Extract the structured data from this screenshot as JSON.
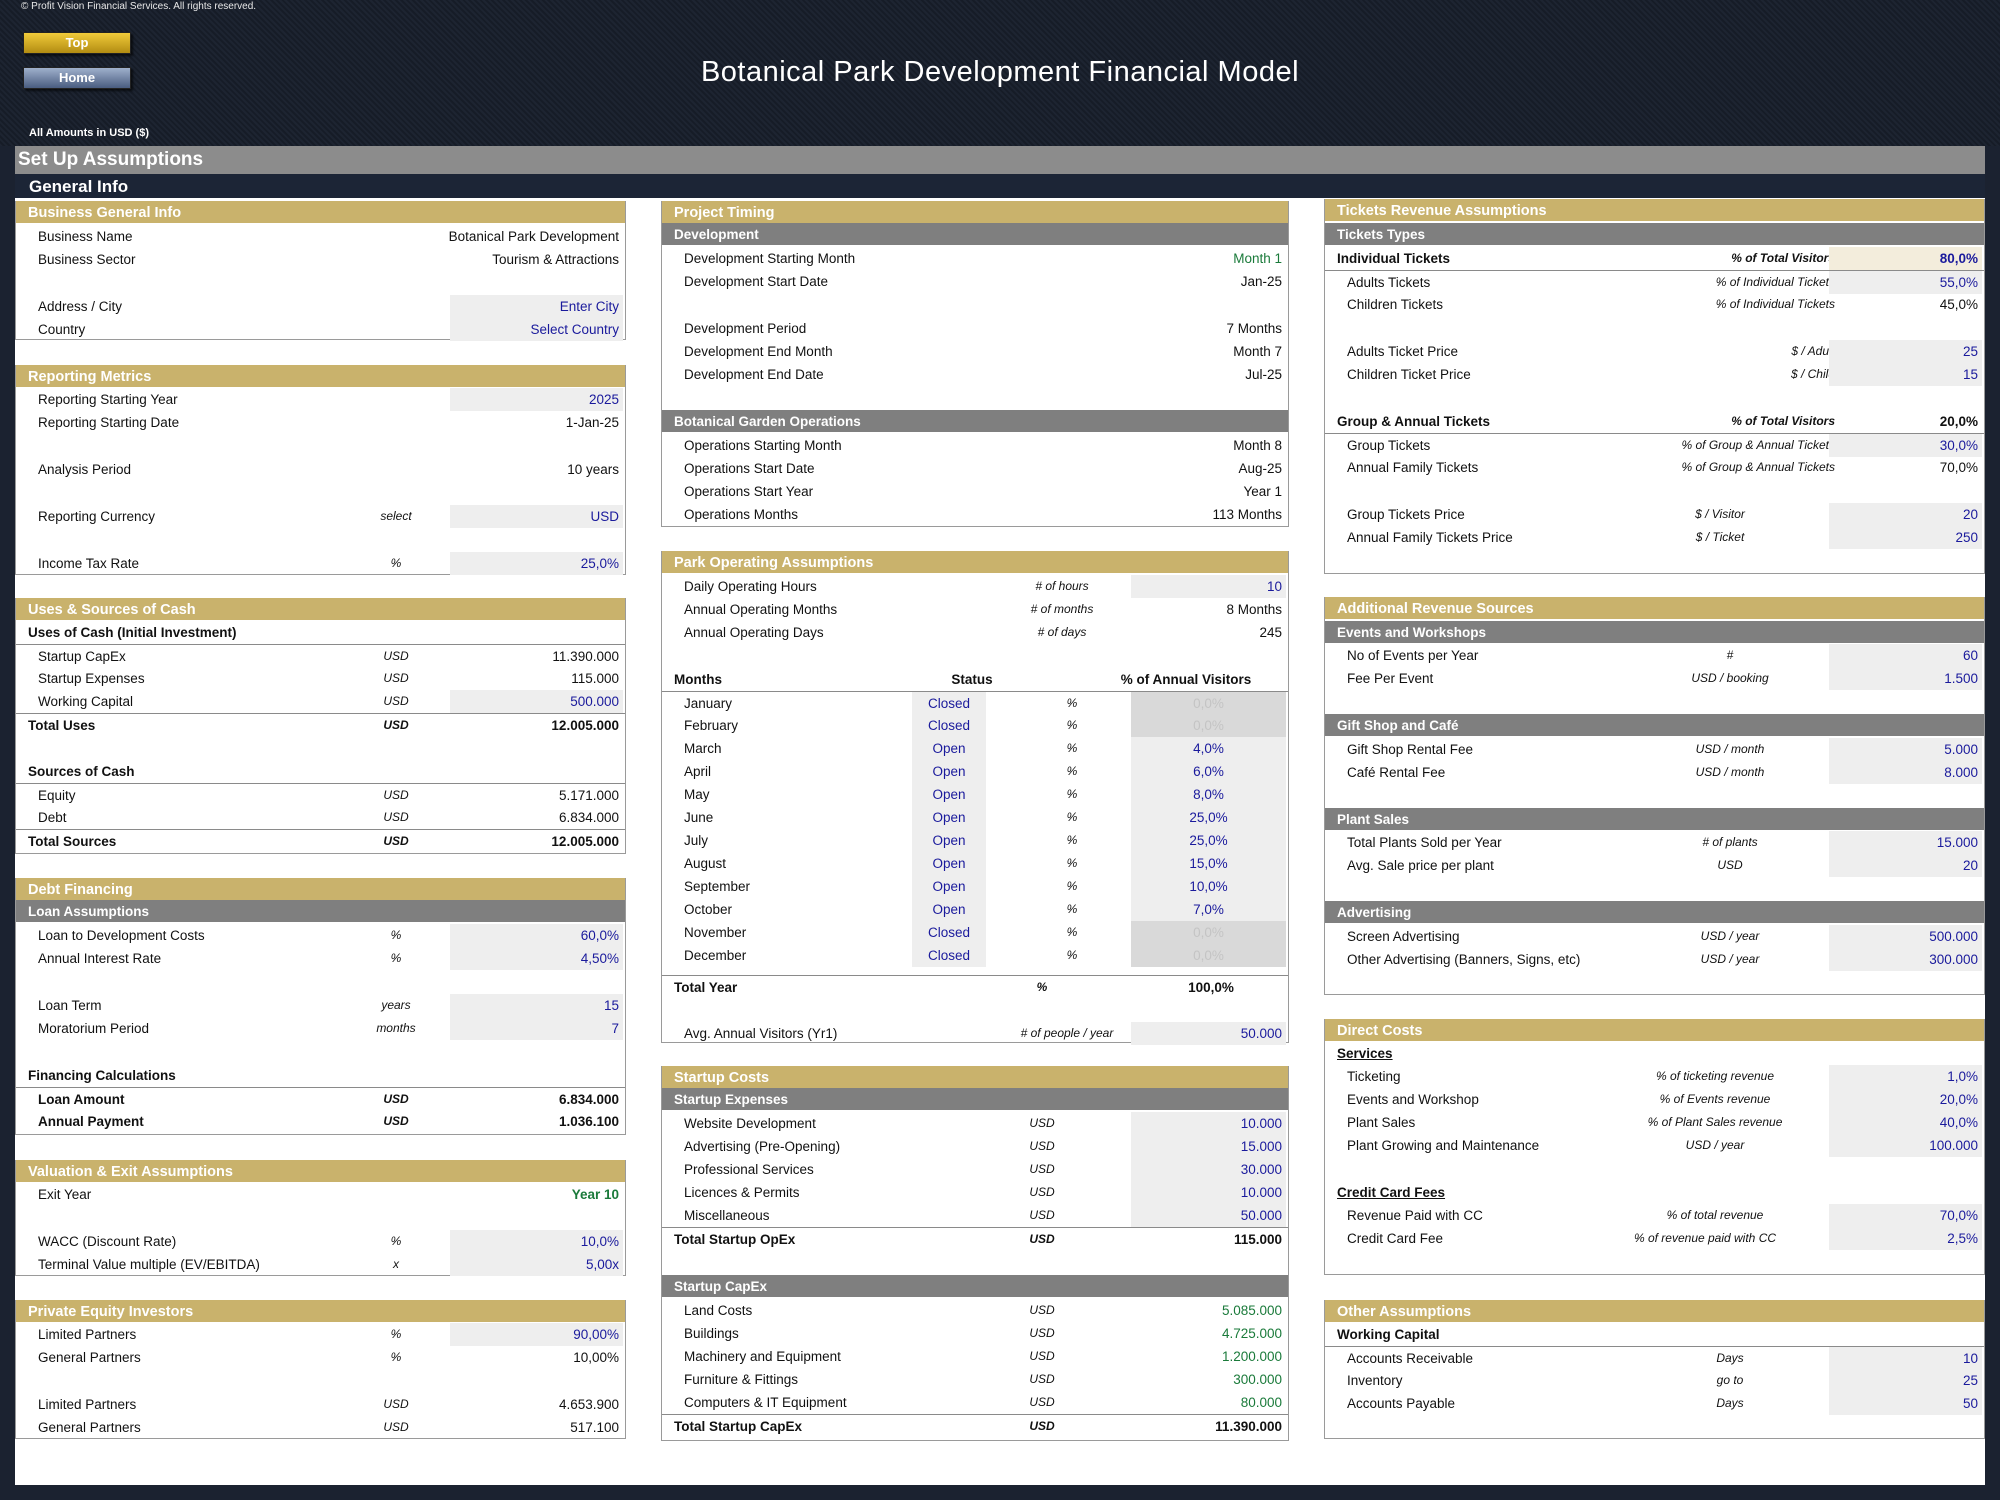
{
  "header": {
    "copyright": "© Profit Vision Financial Services. All rights reserved.",
    "title": "Botanical Park Development Financial Model",
    "top_button": "Top",
    "home_button": "Home",
    "amounts_note": "All Amounts in  USD ($)"
  },
  "setup_title": "Set Up Assumptions",
  "general_info_title": "General Info",
  "business": {
    "title": "Business General Info",
    "name_label": "Business Name",
    "name_value": "Botanical Park Development",
    "sector_label": "Business Sector",
    "sector_value": "Tourism & Attractions",
    "address_label": "Address / City",
    "address_value": "Enter City",
    "country_label": "Country",
    "country_value": "Select Country"
  },
  "reporting": {
    "title": "Reporting Metrics",
    "year_label": "Reporting Starting Year",
    "year_value": "2025",
    "date_label": "Reporting Starting Date",
    "date_value": "1-Jan-25",
    "period_label": "Analysis Period",
    "period_value": "10 years",
    "currency_label": "Reporting Currency",
    "currency_unit": "select",
    "currency_value": "USD",
    "tax_label": "Income Tax Rate",
    "tax_unit": "%",
    "tax_value": "25,0%"
  },
  "uses": {
    "title": "Uses & Sources of Cash",
    "uses_heading": "Uses of Cash (Initial Investment)",
    "capex_label": "Startup CapEx",
    "capex_unit": "USD",
    "capex_value": "11.390.000",
    "exp_label": "Startup Expenses",
    "exp_unit": "USD",
    "exp_value": "115.000",
    "wc_label": "Working Capital",
    "wc_unit": "USD",
    "wc_value": "500.000",
    "total_uses_label": "Total Uses",
    "total_uses_unit": "USD",
    "total_uses_value": "12.005.000",
    "sources_heading": "Sources of Cash",
    "equity_label": "Equity",
    "equity_unit": "USD",
    "equity_value": "5.171.000",
    "debt_label": "Debt",
    "debt_unit": "USD",
    "debt_value": "6.834.000",
    "total_sources_label": "Total Sources",
    "total_sources_unit": "USD",
    "total_sources_value": "12.005.000"
  },
  "debt": {
    "title": "Debt Financing",
    "loan_heading": "Loan Assumptions",
    "ltc_label": "Loan to Development Costs",
    "ltc_unit": "%",
    "ltc_value": "60,0%",
    "rate_label": "Annual Interest Rate",
    "rate_unit": "%",
    "rate_value": "4,50%",
    "term_label": "Loan Term",
    "term_unit": "years",
    "term_value": "15",
    "mor_label": "Moratorium Period",
    "mor_unit": "months",
    "mor_value": "7",
    "calc_heading": "Financing Calculations",
    "amount_label": "Loan Amount",
    "amount_unit": "USD",
    "amount_value": "6.834.000",
    "payment_label": "Annual Payment",
    "payment_unit": "USD",
    "payment_value": "1.036.100"
  },
  "valuation": {
    "title": "Valuation & Exit Assumptions",
    "exit_label": "Exit Year",
    "exit_value": "Year 10",
    "wacc_label": "WACC (Discount Rate)",
    "wacc_unit": "%",
    "wacc_value": "10,0%",
    "tv_label": "Terminal Value multiple (EV/EBITDA)",
    "tv_unit": "x",
    "tv_value": "5,00x"
  },
  "pe": {
    "title": "Private Equity Investors",
    "lp_label": "Limited Partners",
    "lp_unit": "%",
    "lp_value": "90,00%",
    "gp_label": "General Partners",
    "gp_unit": "%",
    "gp_value": "10,00%",
    "lp2_label": "Limited Partners",
    "lp2_unit": "USD",
    "lp2_value": "4.653.900",
    "gp2_label": "General Partners",
    "gp2_unit": "USD",
    "gp2_value": "517.100"
  },
  "timing": {
    "title": "Project Timing",
    "dev_heading": "Development",
    "dsm_label": "Development Starting Month",
    "dsm_value": "Month 1",
    "dsd_label": "Development Start Date",
    "dsd_value": "Jan-25",
    "dp_label": "Development Period",
    "dp_value": "7 Months",
    "dem_label": "Development End Month",
    "dem_value": "Month 7",
    "ded_label": "Development End Date",
    "ded_value": "Jul-25",
    "ops_heading": "Botanical Garden Operations",
    "osm_label": "Operations Starting Month",
    "osm_value": "Month 8",
    "osd_label": "Operations Start Date",
    "osd_value": "Aug-25",
    "osy_label": "Operations Start Year",
    "osy_value": "Year 1",
    "om_label": "Operations Months",
    "om_value": "113 Months"
  },
  "park": {
    "title": "Park Operating Assumptions",
    "hours_label": "Daily Operating Hours",
    "hours_unit": "# of hours",
    "hours_value": "10",
    "months_label": "Annual Operating Months",
    "months_unit": "# of months",
    "months_value": "8 Months",
    "days_label": "Annual Operating Days",
    "days_unit": "# of days",
    "days_value": "245",
    "col_months": "Months",
    "col_status": "Status",
    "col_pct": "% of Annual Visitors",
    "pct_unit": "%",
    "rows": [
      {
        "m": "January",
        "s": "Closed",
        "p": "0,0%"
      },
      {
        "m": "February",
        "s": "Closed",
        "p": "0,0%"
      },
      {
        "m": "March",
        "s": "Open",
        "p": "4,0%"
      },
      {
        "m": "April",
        "s": "Open",
        "p": "6,0%"
      },
      {
        "m": "May",
        "s": "Open",
        "p": "8,0%"
      },
      {
        "m": "June",
        "s": "Open",
        "p": "25,0%"
      },
      {
        "m": "July",
        "s": "Open",
        "p": "25,0%"
      },
      {
        "m": "August",
        "s": "Open",
        "p": "15,0%"
      },
      {
        "m": "September",
        "s": "Open",
        "p": "10,0%"
      },
      {
        "m": "October",
        "s": "Open",
        "p": "7,0%"
      },
      {
        "m": "November",
        "s": "Closed",
        "p": "0,0%"
      },
      {
        "m": "December",
        "s": "Closed",
        "p": "0,0%"
      }
    ],
    "total_label": "Total Year",
    "total_unit": "%",
    "total_value": "100,0%",
    "visitors_label": "Avg. Annual Visitors (Yr1)",
    "visitors_unit": "# of people / year",
    "visitors_value": "50.000"
  },
  "startup": {
    "title": "Startup Costs",
    "exp_heading": "Startup Expenses",
    "unit": "USD",
    "web_label": "Website Development",
    "web_value": "10.000",
    "adv_label": "Advertising (Pre-Opening)",
    "adv_value": "15.000",
    "prof_label": "Professional Services",
    "prof_value": "30.000",
    "lic_label": "Licences & Permits",
    "lic_value": "10.000",
    "misc_label": "Miscellaneous",
    "misc_value": "50.000",
    "opex_total_label": "Total Startup OpEx",
    "opex_total_value": "115.000",
    "capex_heading": "Startup CapEx",
    "land_label": "Land Costs",
    "land_value": "5.085.000",
    "bld_label": "Buildings",
    "bld_value": "4.725.000",
    "mach_label": "Machinery and Equipment",
    "mach_value": "1.200.000",
    "furn_label": "Furniture & Fittings",
    "furn_value": "300.000",
    "comp_label": "Computers & IT Equipment",
    "comp_value": "80.000",
    "capex_total_label": "Total Startup CapEx",
    "capex_total_value": "11.390.000"
  },
  "tickets": {
    "title": "Tickets Revenue Assumptions",
    "types_heading": "Tickets Types",
    "ind_label": "Individual Tickets",
    "ind_unit": "% of Total Visitors",
    "ind_value": "80,0%",
    "adult_label": "Adults Tickets",
    "adult_unit": "% of Individual Tickets",
    "adult_value": "55,0%",
    "child_label": "Children Tickets",
    "child_unit": "% of Individual Tickets",
    "child_value": "45,0%",
    "adult_price_label": "Adults Ticket Price",
    "adult_price_unit": "$ / Adult",
    "adult_price_value": "25",
    "child_price_label": "Children Ticket Price",
    "child_price_unit": "$ / Child",
    "child_price_value": "15",
    "grp_label": "Group & Annual Tickets",
    "grp_unit": "% of Total Visitors",
    "grp_value": "20,0%",
    "group_label": "Group Tickets",
    "group_unit": "% of Group & Annual Tickets",
    "group_value": "30,0%",
    "fam_label": "Annual Family Tickets",
    "fam_unit": "% of Group & Annual Tickets",
    "fam_value": "70,0%",
    "gprice_label": "Group Tickets Price",
    "gprice_unit": "$ / Visitor",
    "gprice_value": "20",
    "fprice_label": "Annual Family Tickets Price",
    "fprice_unit": "$ / Ticket",
    "fprice_value": "250"
  },
  "additional": {
    "title": "Additional Revenue Sources",
    "events_heading": "Events and Workshops",
    "events_label": "No of Events per Year",
    "events_unit": "#",
    "events_value": "60",
    "fee_label": "Fee Per Event",
    "fee_unit": "USD / booking",
    "fee_value": "1.500",
    "gift_heading": "Gift Shop and Café",
    "gift_label": "Gift Shop Rental Fee",
    "gift_unit": "USD / month",
    "gift_value": "5.000",
    "cafe_label": "Café Rental Fee",
    "cafe_unit": "USD / month",
    "cafe_value": "8.000",
    "plant_heading": "Plant Sales",
    "plants_label": "Total Plants Sold per Year",
    "plants_unit": "# of plants",
    "plants_value": "15.000",
    "avg_label": "Avg. Sale price per plant",
    "avg_unit": "USD",
    "avg_value": "20",
    "adv_heading": "Advertising",
    "screen_label": "Screen Advertising",
    "screen_unit": "USD / year",
    "screen_value": "500.000",
    "other_label": "Other Advertising (Banners, Signs, etc)",
    "other_unit": "USD / year",
    "other_value": "300.000"
  },
  "direct": {
    "title": "Direct Costs",
    "services_heading": "Services",
    "tick_label": "Ticketing",
    "tick_unit": "% of ticketing revenue",
    "tick_value": "1,0%",
    "ev_label": "Events and Workshop",
    "ev_unit": "% of Events revenue",
    "ev_value": "20,0%",
    "ps_label": "Plant Sales",
    "ps_unit": "% of Plant Sales revenue",
    "ps_value": "40,0%",
    "pg_label": "Plant Growing and Maintenance",
    "pg_unit": "USD / year",
    "pg_value": "100.000",
    "cc_heading": "Credit Card Fees",
    "rcc_label": "Revenue Paid with CC",
    "rcc_unit": "% of total revenue",
    "rcc_value": "70,0%",
    "ccf_label": "Credit Card Fee",
    "ccf_unit": "% of revenue paid with CC",
    "ccf_value": "2,5%"
  },
  "other": {
    "title": "Other Assumptions",
    "wc_heading": "Working Capital",
    "ar_label": "Accounts Receivable",
    "ar_unit": "Days",
    "ar_value": "10",
    "inv_label": "Inventory",
    "inv_unit": "go to",
    "inv_value": "25",
    "ap_label": "Accounts Payable",
    "ap_unit": "Days",
    "ap_value": "50"
  }
}
